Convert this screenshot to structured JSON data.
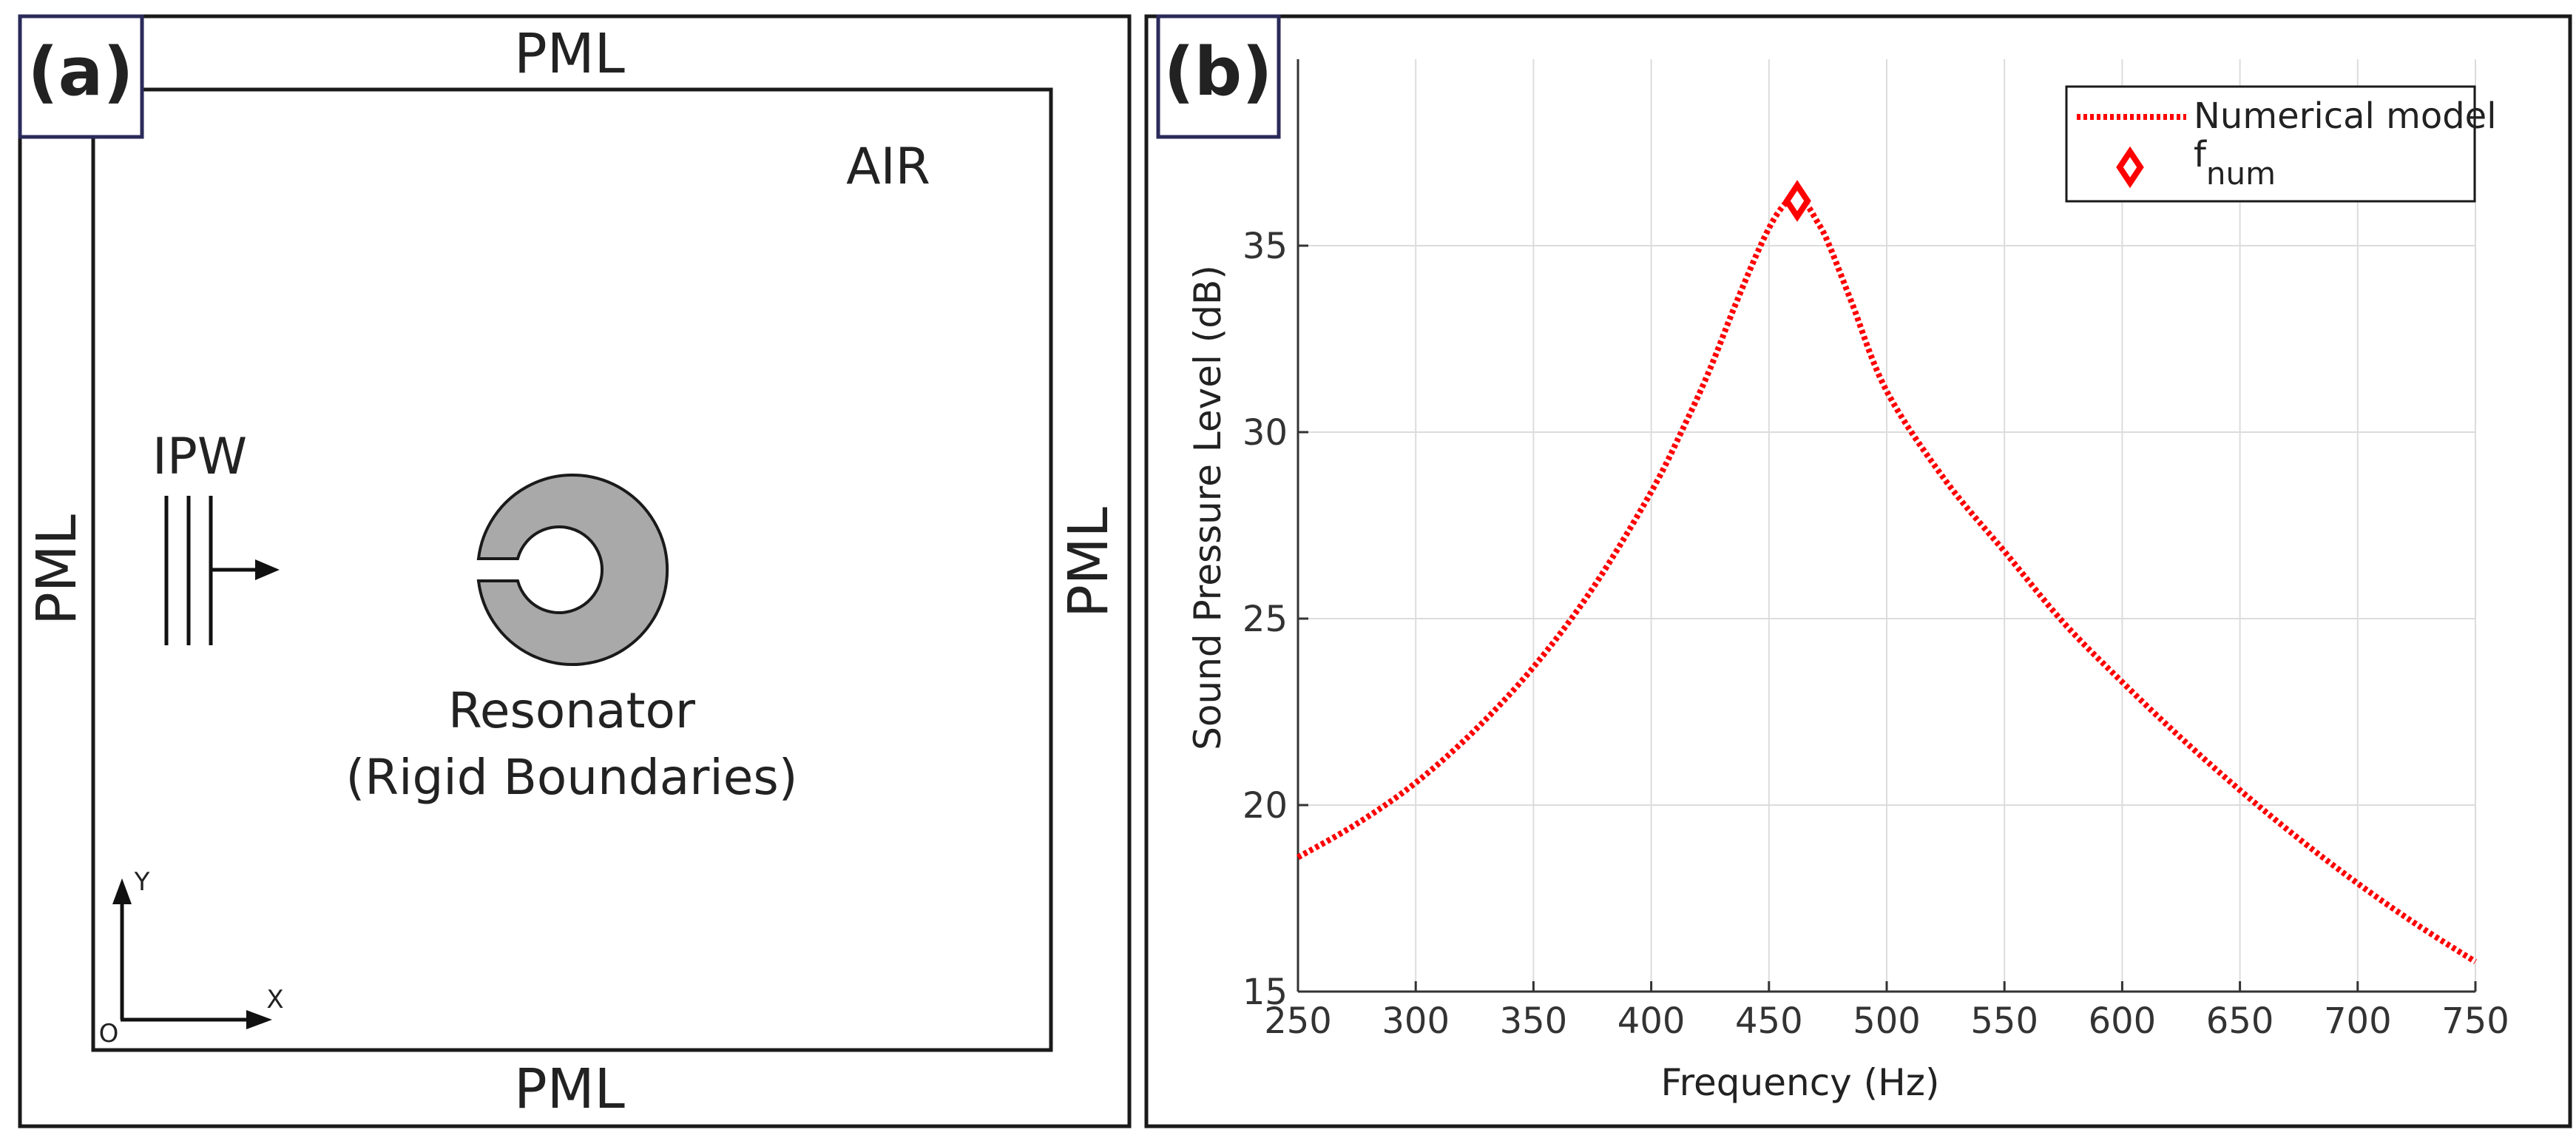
{
  "panel_a": {
    "tag": "(a)",
    "pml_top": "PML",
    "pml_bottom": "PML",
    "pml_left": "PML",
    "pml_right": "PML",
    "air": "AIR",
    "ipw": "IPW",
    "resonator_title": "Resonator",
    "resonator_sub": "(Rigid Boundaries)",
    "axis_y": "Y",
    "axis_x": "X",
    "axis_origin": "O"
  },
  "panel_b": {
    "tag": "(b)"
  },
  "chart_data": {
    "type": "line",
    "xlabel": "Frequency (Hz)",
    "ylabel": "Sound Pressure Level (dB)",
    "xlim": [
      250,
      750
    ],
    "ylim": [
      15,
      40
    ],
    "xticks": [
      250,
      300,
      350,
      400,
      450,
      500,
      550,
      600,
      650,
      700,
      750
    ],
    "yticks": [
      15,
      20,
      25,
      30,
      35
    ],
    "grid": true,
    "legend_position": "top-right",
    "line_color": "#ff0000",
    "series": [
      {
        "name": "Numerical model",
        "style": "dotted",
        "x": [
          250,
          275,
          300,
          325,
          350,
          375,
          400,
          415,
          425,
          435,
          445,
          452,
          458,
          462,
          466,
          470,
          475,
          485,
          500,
          525,
          550,
          575,
          600,
          625,
          650,
          675,
          700,
          725,
          750
        ],
        "y": [
          18.6,
          19.5,
          20.6,
          22.0,
          23.7,
          25.8,
          28.4,
          30.3,
          31.7,
          33.3,
          34.8,
          35.7,
          36.2,
          36.3,
          36.1,
          35.7,
          35.1,
          33.5,
          31.1,
          28.7,
          26.8,
          24.9,
          23.3,
          21.8,
          20.4,
          19.1,
          17.9,
          16.8,
          15.8
        ]
      }
    ],
    "markers": [
      {
        "name": "f",
        "name_subscript": "num",
        "shape": "diamond",
        "x": 462,
        "y": 36.2
      }
    ]
  }
}
